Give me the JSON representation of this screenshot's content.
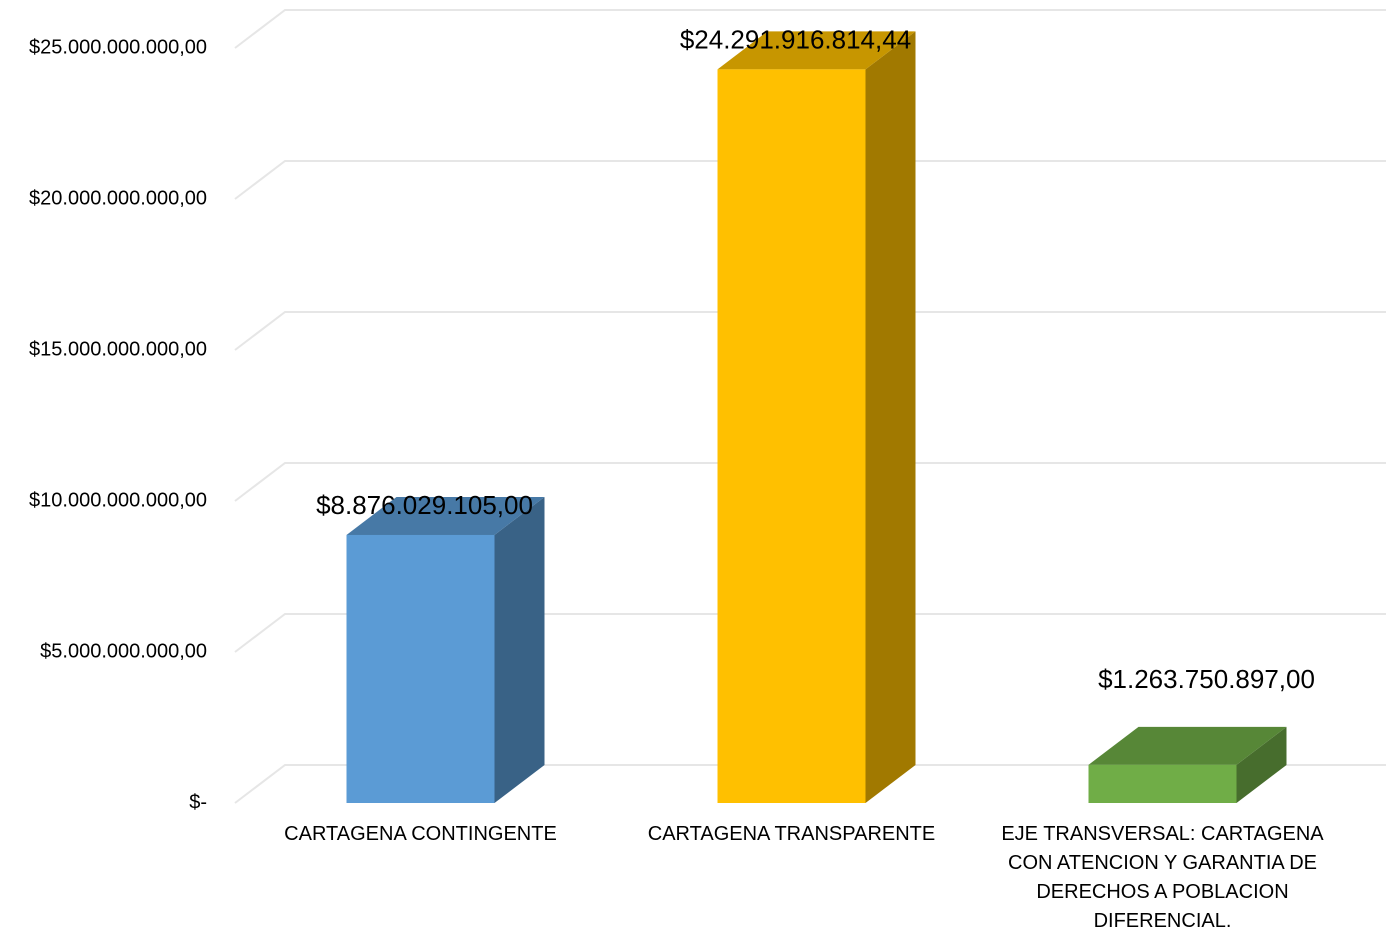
{
  "chart_data": {
    "type": "bar3d",
    "categories": [
      "CARTAGENA CONTINGENTE",
      "CARTAGENA TRANSPARENTE",
      "EJE TRANSVERSAL: CARTAGENA CON ATENCION Y GARANTIA DE DERECHOS A POBLACION DIFERENCIAL."
    ],
    "values": [
      8876029105,
      24291916814.44,
      1263750897
    ],
    "value_labels": [
      "$8.876.029.105,00",
      "$24.291.916.814,44",
      "$1.263.750.897,00"
    ],
    "colors": [
      "#5b9bd5",
      "#ffc000",
      "#70ad47"
    ],
    "ylim": [
      0,
      25000000000
    ],
    "yticks": [
      {
        "value": 0,
        "label": "$-"
      },
      {
        "value": 5000000000,
        "label": "$5.000.000.000,00"
      },
      {
        "value": 10000000000,
        "label": "$10.000.000.000,00"
      },
      {
        "value": 15000000000,
        "label": "$15.000.000.000,00"
      },
      {
        "value": 20000000000,
        "label": "$20.000.000.000,00"
      },
      {
        "value": 25000000000,
        "label": "$25.000.000.000,00"
      }
    ],
    "grid": true
  }
}
